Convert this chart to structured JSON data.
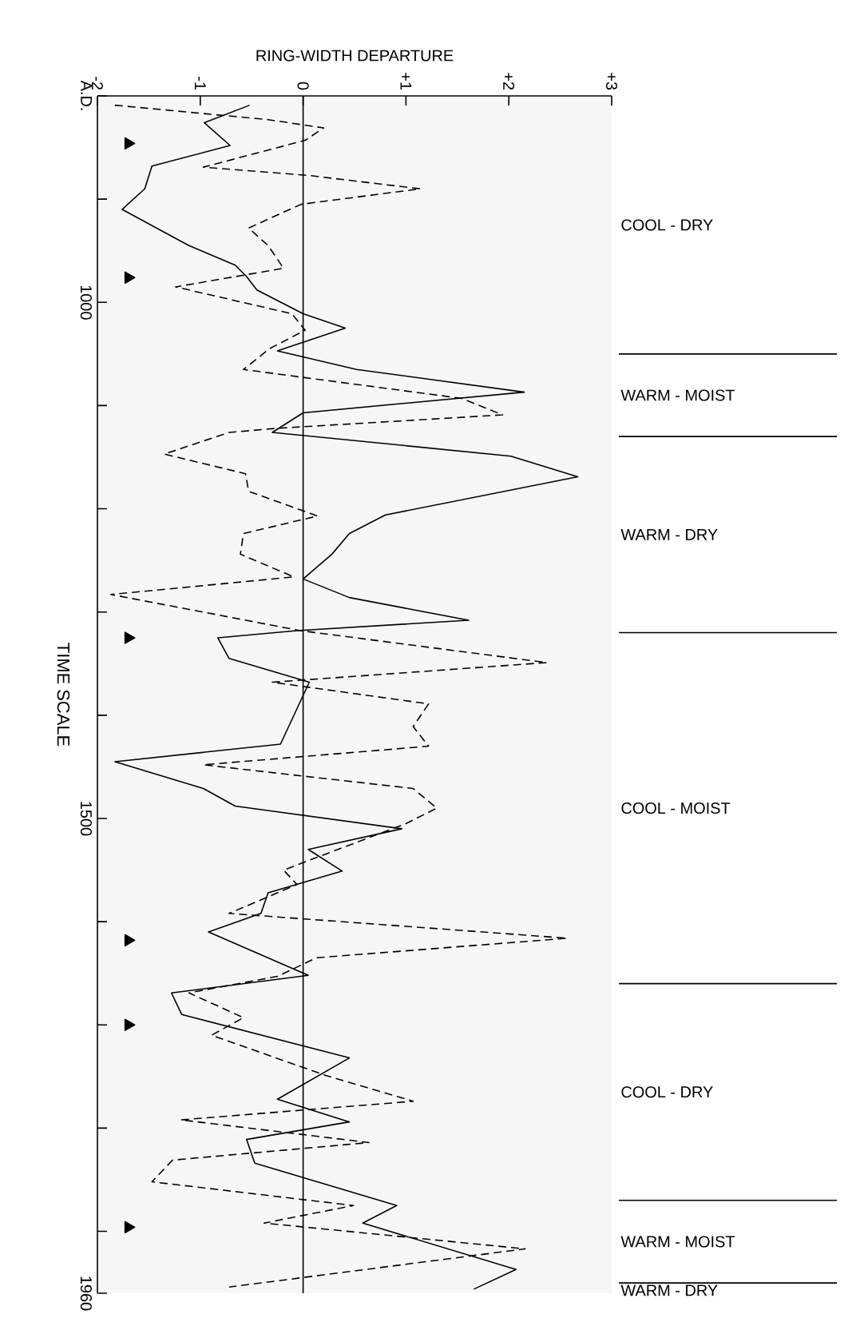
{
  "chart_data": {
    "type": "line",
    "orientation": "horizontal",
    "xlabel": "RING-WIDTH DEPARTURE",
    "ylabel": "TIME SCALE",
    "marker": "none",
    "xlim": [
      -2,
      3
    ],
    "xticks": [
      -2,
      -1,
      0,
      {
        "value": 1,
        "label": "+1"
      },
      {
        "value": 2,
        "label": "+2"
      },
      {
        "value": 3,
        "label": "+3"
      }
    ],
    "ylim": [
      1960,
      800
    ],
    "yticks": [
      {
        "value": 800,
        "label": "A.D."
      },
      {
        "value": 900,
        "label": null
      },
      1000,
      {
        "value": 1100,
        "label": null
      },
      {
        "value": 1200,
        "label": null
      },
      {
        "value": 1300,
        "label": null
      },
      {
        "value": 1400,
        "label": null
      },
      1500,
      {
        "value": 1600,
        "label": null
      },
      {
        "value": 1700,
        "label": null
      },
      {
        "value": 1800,
        "label": null
      },
      {
        "value": 1900,
        "label": null
      },
      1960
    ],
    "ref_lines": [
      {
        "axis": "x",
        "value": 0,
        "color": "#000000"
      }
    ],
    "bands": [
      {
        "axis": "y",
        "from": 800,
        "to": 1050,
        "label": "COOL - DRY",
        "color": "#f6f6f6"
      },
      {
        "axis": "y",
        "from": 1050,
        "to": 1130,
        "label": "WARM - MOIST",
        "color": "#f6f6f6"
      },
      {
        "axis": "y",
        "from": 1130,
        "to": 1320,
        "label": "WARM - DRY",
        "color": "#f6f6f6"
      },
      {
        "axis": "y",
        "from": 1320,
        "to": 1660,
        "label": "COOL - MOIST",
        "color": "#f6f6f6"
      },
      {
        "axis": "y",
        "from": 1660,
        "to": 1870,
        "label": "COOL - DRY",
        "color": "#f6f6f6"
      },
      {
        "axis": "y",
        "from": 1870,
        "to": 1950,
        "label": "WARM - MOIST",
        "color": "#f6f6f6"
      },
      {
        "axis": "y",
        "from": 1950,
        "to": 1960,
        "label": "WARM - DRY",
        "color": "#f6f6f6"
      }
    ],
    "series": [
      {
        "color": "#000000",
        "line_style": "solid",
        "x": [
          809,
          826,
          848,
          868,
          890,
          910,
          945,
          964,
          975,
          988,
          1011,
          1025,
          1047,
          1065,
          1087,
          1107,
          1126,
          1149,
          1169,
          1206,
          1224,
          1244,
          1268,
          1286,
          1308,
          1318,
          1325,
          1345,
          1363,
          1368,
          1428,
          1445,
          1471,
          1488,
          1510,
          1530,
          1551,
          1572,
          1592,
          1610,
          1652,
          1669,
          1690,
          1732,
          1772,
          1794,
          1811,
          1834,
          1875,
          1892,
          1937,
          1956
        ],
        "values": [
          -0.52,
          -0.96,
          -0.71,
          -1.47,
          -1.54,
          -1.76,
          -1.11,
          -0.66,
          -0.55,
          -0.45,
          0.0,
          0.41,
          -0.25,
          0.52,
          2.15,
          0.0,
          -0.3,
          2.02,
          2.67,
          0.8,
          0.45,
          0.28,
          0.0,
          0.45,
          1.61,
          -0.06,
          -0.83,
          -0.72,
          -0.11,
          0.06,
          -0.22,
          -1.83,
          -0.97,
          -0.66,
          0.96,
          0.05,
          0.38,
          -0.34,
          -0.41,
          -0.92,
          0.05,
          -1.28,
          -1.18,
          0.45,
          -0.25,
          0.45,
          -0.55,
          -0.47,
          0.91,
          0.58,
          2.07,
          1.66
        ]
      },
      {
        "color": "#000000",
        "line_style": "dashed",
        "x": [
          809,
          823,
          831,
          843,
          869,
          877,
          890,
          905,
          928,
          945,
          967,
          985,
          1011,
          1027,
          1045,
          1065,
          1093,
          1109,
          1122,
          1126,
          1147,
          1166,
          1183,
          1207,
          1224,
          1244,
          1266,
          1283,
          1318,
          1349,
          1368,
          1389,
          1411,
          1430,
          1448,
          1471,
          1490,
          1505,
          1550,
          1564,
          1592,
          1616,
          1635,
          1653,
          1669,
          1693,
          1710,
          1749,
          1774,
          1792,
          1814,
          1831,
          1852,
          1875,
          1892,
          1917,
          1954
        ],
        "values": [
          -1.83,
          -0.34,
          0.2,
          0.02,
          -0.97,
          0.05,
          1.14,
          -0.02,
          -0.53,
          -0.34,
          -0.19,
          -1.24,
          -0.11,
          0.02,
          -0.33,
          -0.58,
          1.54,
          1.94,
          -0.25,
          -0.72,
          -1.35,
          -0.56,
          -0.53,
          0.14,
          -0.58,
          -0.61,
          -0.09,
          -1.87,
          -0.03,
          2.37,
          -0.3,
          1.22,
          1.07,
          1.22,
          -0.97,
          1.07,
          1.3,
          1.0,
          -0.19,
          -0.06,
          -0.72,
          2.57,
          0.13,
          -0.25,
          -1.11,
          -0.58,
          -0.89,
          0.22,
          1.07,
          -1.19,
          0.64,
          -1.27,
          -1.47,
          0.49,
          -0.38,
          2.16,
          -0.72
        ]
      },
      {
        "type": "scatter",
        "marker": "triangle",
        "color": "#000000",
        "x": [
          846,
          976,
          1325,
          1618,
          1700,
          1896
        ],
        "values": [
          -1.7,
          -1.7,
          -1.7,
          -1.7,
          -1.7,
          -1.7
        ]
      }
    ]
  }
}
